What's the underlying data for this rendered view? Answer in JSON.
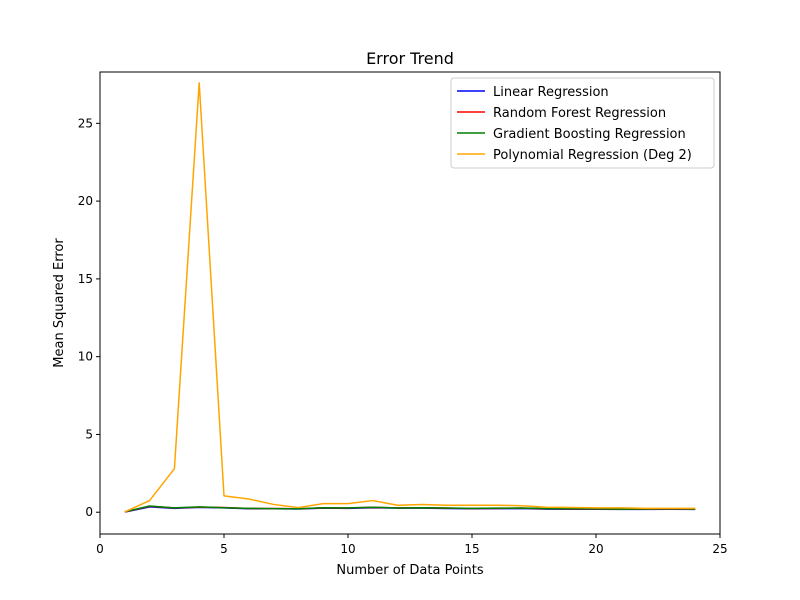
{
  "chart_data": {
    "type": "line",
    "title": "Error Trend",
    "xlabel": "Number of Data Points",
    "ylabel": "Mean Squared Error",
    "xlim": [
      0,
      25
    ],
    "ylim": [
      -1.4,
      28.3
    ],
    "x_ticks": [
      0,
      5,
      10,
      15,
      20,
      25
    ],
    "y_ticks": [
      0,
      5,
      10,
      15,
      20,
      25
    ],
    "grid": false,
    "legend_position": "top-right",
    "x": [
      1,
      2,
      3,
      4,
      5,
      6,
      7,
      8,
      9,
      10,
      11,
      12,
      13,
      14,
      15,
      16,
      17,
      18,
      19,
      20,
      21,
      22,
      23,
      24
    ],
    "series": [
      {
        "name": "Linear Regression",
        "color": "#0000ff",
        "values": [
          0.01,
          0.34,
          0.25,
          0.31,
          0.28,
          0.22,
          0.22,
          0.21,
          0.26,
          0.25,
          0.29,
          0.26,
          0.26,
          0.24,
          0.22,
          0.23,
          0.24,
          0.2,
          0.19,
          0.19,
          0.18,
          0.18,
          0.19,
          0.18
        ]
      },
      {
        "name": "Random Forest Regression",
        "color": "#ff0000",
        "values": [
          0.02,
          0.38,
          0.27,
          0.33,
          0.3,
          0.24,
          0.24,
          0.22,
          0.28,
          0.27,
          0.31,
          0.28,
          0.28,
          0.26,
          0.24,
          0.25,
          0.26,
          0.22,
          0.21,
          0.21,
          0.2,
          0.2,
          0.21,
          0.2
        ]
      },
      {
        "name": "Gradient Boosting Regression",
        "color": "#008000",
        "values": [
          0.03,
          0.4,
          0.28,
          0.34,
          0.29,
          0.25,
          0.23,
          0.22,
          0.29,
          0.28,
          0.32,
          0.27,
          0.29,
          0.27,
          0.25,
          0.26,
          0.27,
          0.23,
          0.22,
          0.22,
          0.2,
          0.21,
          0.22,
          0.21
        ]
      },
      {
        "name": "Polynomial Regression (Deg 2)",
        "color": "#ffa500",
        "values": [
          0.02,
          0.75,
          2.8,
          27.6,
          1.05,
          0.85,
          0.5,
          0.3,
          0.55,
          0.55,
          0.75,
          0.45,
          0.5,
          0.45,
          0.45,
          0.45,
          0.42,
          0.32,
          0.3,
          0.28,
          0.28,
          0.25,
          0.25,
          0.25
        ]
      }
    ]
  }
}
